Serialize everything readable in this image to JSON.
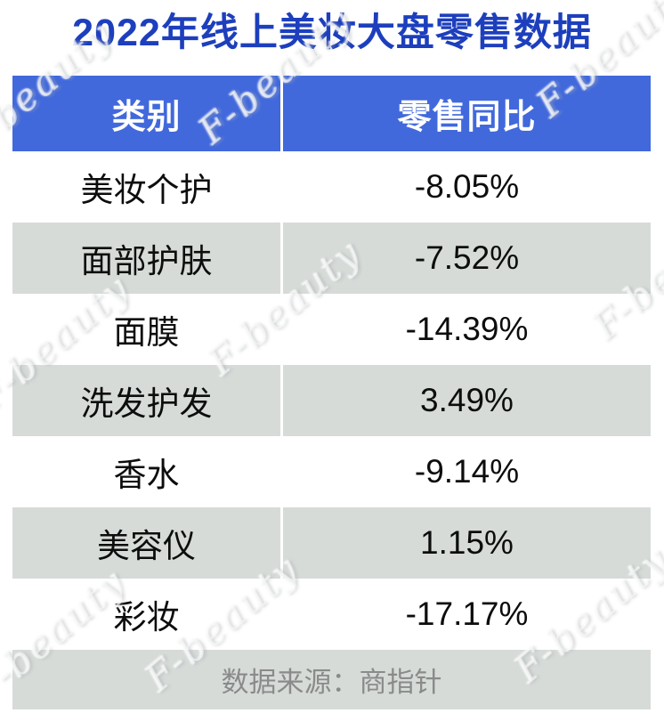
{
  "title": "2022年线上美妆大盘零售数据",
  "table": {
    "headers": [
      "类别",
      "零售同比"
    ],
    "rows": [
      {
        "category": "美妆个护",
        "yoy": "-8.05%"
      },
      {
        "category": "面部护肤",
        "yoy": "-7.52%"
      },
      {
        "category": "面膜",
        "yoy": "-14.39%"
      },
      {
        "category": "洗发护发",
        "yoy": "3.49%"
      },
      {
        "category": "香水",
        "yoy": "-9.14%"
      },
      {
        "category": "美容仪",
        "yoy": "1.15%"
      },
      {
        "category": "彩妆",
        "yoy": "-17.17%"
      }
    ]
  },
  "footer": {
    "source": "数据来源：商指针"
  },
  "watermark": {
    "text": "F-beauty"
  },
  "colors": {
    "title_text": "#1D3FBD",
    "header_bg": "#4169DC",
    "header_text": "#FFFFFF",
    "row_alt_bg": "#D6DBD8",
    "row_text": "#0D0D0D",
    "footer_bg": "#D6DBD8",
    "footer_text": "#8A8A8A"
  },
  "chart_data": {
    "type": "table",
    "title": "2022年线上美妆大盘零售数据",
    "columns": [
      "类别",
      "零售同比"
    ],
    "categories": [
      "美妆个护",
      "面部护肤",
      "面膜",
      "洗发护发",
      "香水",
      "美容仪",
      "彩妆"
    ],
    "values_pct": [
      -8.05,
      -7.52,
      -14.39,
      3.49,
      -9.14,
      1.15,
      -17.17
    ],
    "source": "数据来源：商指针",
    "legend": false,
    "grid": false
  }
}
